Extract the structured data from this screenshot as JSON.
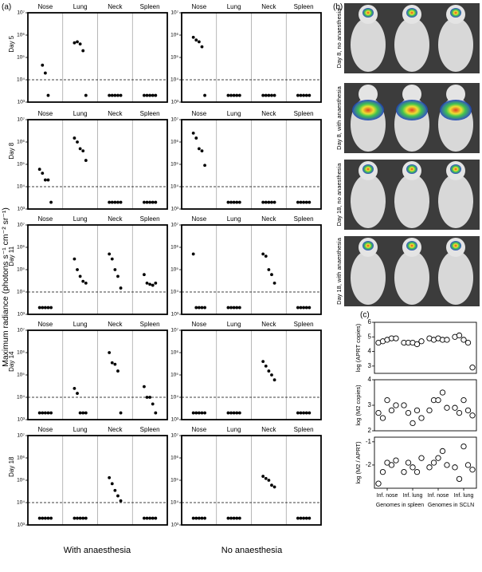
{
  "panel_labels": [
    "(a)",
    "(b)",
    "(c)"
  ],
  "a": {
    "ylabel": "Maximum radiance (photons s⁻¹ cm⁻² sr⁻¹)",
    "columns": [
      "With anaesthesia",
      "No anaesthesia"
    ],
    "rows": [
      "Day 5",
      "Day 8",
      "Day 11",
      "Day 14",
      "Day 18"
    ]
  },
  "b": {
    "labels": [
      "Day 8, no anaesthesia",
      "Day 8, with anaesthesia",
      "Day 18, no anaesthesia",
      "Day 18, with anaesthesia"
    ]
  },
  "c": {
    "categories": [
      "Inf. nose",
      "Inf. lung",
      "Inf. nose",
      "Inf. lung"
    ],
    "groups": [
      "Genomes in spleen",
      "Genomes in SCLN"
    ]
  },
  "chart_data": [
    {
      "type": "strip",
      "yscale": "log",
      "categories": [
        "Nose",
        "Lung",
        "Neck",
        "Spleen"
      ],
      "values": [
        [
          45000,
          20000,
          2000
        ],
        [
          450000,
          500000,
          400000,
          200000,
          2000
        ],
        [
          2000,
          2000,
          2000,
          2000,
          2000
        ],
        [
          2000,
          2000,
          2000,
          2000,
          2000
        ]
      ],
      "ylim": [
        1000,
        10000000
      ],
      "yticks": [
        {
          "value": 1000,
          "label": "10³"
        },
        {
          "value": 10000,
          "label": "10⁴"
        },
        {
          "value": 100000,
          "label": "10⁵"
        },
        {
          "value": 1000000,
          "label": "10⁶"
        },
        {
          "value": 10000000,
          "label": "10⁷"
        }
      ],
      "threshold": 10000,
      "marker": "filled",
      "color": "#000000"
    },
    {
      "type": "strip",
      "yscale": "log",
      "categories": [
        "Nose",
        "Lung",
        "Neck",
        "Spleen"
      ],
      "values": [
        [
          800000,
          600000,
          500000,
          300000,
          2000
        ],
        [
          2000,
          2000,
          2000,
          2000,
          2000
        ],
        [
          2000,
          2000,
          2000,
          2000,
          2000
        ],
        [
          2000,
          2000,
          2000,
          2000,
          2000
        ]
      ],
      "ylim": [
        1000,
        10000000
      ],
      "yticks": [
        {
          "value": 1000,
          "label": "10³"
        },
        {
          "value": 10000,
          "label": "10⁴"
        },
        {
          "value": 100000,
          "label": "10⁵"
        },
        {
          "value": 1000000,
          "label": "10⁶"
        },
        {
          "value": 10000000,
          "label": "10⁷"
        }
      ],
      "threshold": 10000,
      "marker": "filled",
      "color": "#000000"
    },
    {
      "type": "strip",
      "yscale": "log",
      "categories": [
        "Nose",
        "Lung",
        "Neck",
        "Spleen"
      ],
      "values": [
        [
          60000,
          40000,
          20000,
          20000,
          2000
        ],
        [
          1500000,
          1000000,
          500000,
          400000,
          150000
        ],
        [
          2000,
          2000,
          2000,
          2000,
          2000
        ],
        [
          2000,
          2000,
          2000,
          2000,
          2000
        ]
      ],
      "ylim": [
        1000,
        10000000
      ],
      "yticks": [
        {
          "value": 1000,
          "label": "10³"
        },
        {
          "value": 10000,
          "label": "10⁴"
        },
        {
          "value": 100000,
          "label": "10⁵"
        },
        {
          "value": 1000000,
          "label": "10⁶"
        },
        {
          "value": 10000000,
          "label": "10⁷"
        }
      ],
      "threshold": 10000,
      "marker": "filled",
      "color": "#000000"
    },
    {
      "type": "strip",
      "yscale": "log",
      "categories": [
        "Nose",
        "Lung",
        "Neck",
        "Spleen"
      ],
      "values": [
        [
          2500000,
          1500000,
          500000,
          400000,
          90000
        ],
        [
          2000,
          2000,
          2000,
          2000,
          2000
        ],
        [
          2000,
          2000,
          2000,
          2000,
          2000
        ],
        [
          2000,
          2000,
          2000,
          2000,
          2000
        ]
      ],
      "ylim": [
        1000,
        10000000
      ],
      "yticks": [
        {
          "value": 1000,
          "label": "10³"
        },
        {
          "value": 10000,
          "label": "10⁴"
        },
        {
          "value": 100000,
          "label": "10⁵"
        },
        {
          "value": 1000000,
          "label": "10⁶"
        },
        {
          "value": 10000000,
          "label": "10⁷"
        }
      ],
      "threshold": 10000,
      "marker": "filled",
      "color": "#000000"
    },
    {
      "type": "strip",
      "yscale": "log",
      "categories": [
        "Nose",
        "Lung",
        "Neck",
        "Spleen"
      ],
      "values": [
        [
          2000,
          2000,
          2000,
          2000,
          2000
        ],
        [
          300000,
          100000,
          50000,
          30000,
          25000
        ],
        [
          500000,
          300000,
          100000,
          50000,
          15000
        ],
        [
          60000,
          25000,
          22000,
          20000,
          25000
        ]
      ],
      "ylim": [
        1000,
        10000000
      ],
      "yticks": [
        {
          "value": 1000,
          "label": "10³"
        },
        {
          "value": 10000,
          "label": "10⁴"
        },
        {
          "value": 100000,
          "label": "10⁵"
        },
        {
          "value": 1000000,
          "label": "10⁶"
        },
        {
          "value": 10000000,
          "label": "10⁷"
        }
      ],
      "threshold": 10000,
      "marker": "filled",
      "color": "#000000"
    },
    {
      "type": "strip",
      "yscale": "log",
      "categories": [
        "Nose",
        "Lung",
        "Neck",
        "Spleen"
      ],
      "values": [
        [
          500000,
          2000,
          2000,
          2000,
          2000
        ],
        [
          2000,
          2000,
          2000,
          2000,
          2000
        ],
        [
          500000,
          400000,
          100000,
          60000,
          25000
        ],
        [
          2000,
          2000,
          2000,
          2000,
          2000
        ]
      ],
      "ylim": [
        1000,
        10000000
      ],
      "yticks": [
        {
          "value": 1000,
          "label": "10³"
        },
        {
          "value": 10000,
          "label": "10⁴"
        },
        {
          "value": 100000,
          "label": "10⁵"
        },
        {
          "value": 1000000,
          "label": "10⁶"
        },
        {
          "value": 10000000,
          "label": "10⁷"
        }
      ],
      "threshold": 10000,
      "marker": "filled",
      "color": "#000000"
    },
    {
      "type": "strip",
      "yscale": "log",
      "categories": [
        "Nose",
        "Lung",
        "Neck",
        "Spleen"
      ],
      "values": [
        [
          2000,
          2000,
          2000,
          2000,
          2000
        ],
        [
          25000,
          15000,
          2000,
          2000,
          2000
        ],
        [
          1000000,
          350000,
          300000,
          150000,
          2000
        ],
        [
          30000,
          10000,
          10000,
          5000,
          2000
        ]
      ],
      "ylim": [
        1000,
        10000000
      ],
      "yticks": [
        {
          "value": 1000,
          "label": "10³"
        },
        {
          "value": 10000,
          "label": "10⁴"
        },
        {
          "value": 100000,
          "label": "10⁵"
        },
        {
          "value": 1000000,
          "label": "10⁶"
        },
        {
          "value": 10000000,
          "label": "10⁷"
        }
      ],
      "threshold": 10000,
      "marker": "filled",
      "color": "#000000"
    },
    {
      "type": "strip",
      "yscale": "log",
      "categories": [
        "Nose",
        "Lung",
        "Neck",
        "Spleen"
      ],
      "values": [
        [
          2000,
          2000,
          2000,
          2000,
          2000
        ],
        [
          2000,
          2000,
          2000,
          2000,
          2000
        ],
        [
          400000,
          250000,
          150000,
          100000,
          60000
        ],
        [
          2000,
          2000,
          2000,
          2000,
          2000
        ]
      ],
      "ylim": [
        1000,
        10000000
      ],
      "yticks": [
        {
          "value": 1000,
          "label": "10³"
        },
        {
          "value": 10000,
          "label": "10⁴"
        },
        {
          "value": 100000,
          "label": "10⁵"
        },
        {
          "value": 1000000,
          "label": "10⁶"
        },
        {
          "value": 10000000,
          "label": "10⁷"
        }
      ],
      "threshold": 10000,
      "marker": "filled",
      "color": "#000000"
    },
    {
      "type": "strip",
      "yscale": "log",
      "categories": [
        "Nose",
        "Lung",
        "Neck",
        "Spleen"
      ],
      "values": [
        [
          2000,
          2000,
          2000,
          2000,
          2000
        ],
        [
          2000,
          2000,
          2000,
          2000,
          2000
        ],
        [
          130000,
          70000,
          35000,
          20000,
          12000
        ],
        [
          2000,
          2000,
          2000,
          2000,
          2000
        ]
      ],
      "ylim": [
        1000,
        10000000
      ],
      "yticks": [
        {
          "value": 1000,
          "label": "10³"
        },
        {
          "value": 10000,
          "label": "10⁴"
        },
        {
          "value": 100000,
          "label": "10⁵"
        },
        {
          "value": 1000000,
          "label": "10⁶"
        },
        {
          "value": 10000000,
          "label": "10⁷"
        }
      ],
      "threshold": 10000,
      "marker": "filled",
      "color": "#000000"
    },
    {
      "type": "strip",
      "yscale": "log",
      "categories": [
        "Nose",
        "Lung",
        "Neck",
        "Spleen"
      ],
      "values": [
        [
          2000,
          2000,
          2000,
          2000,
          2000
        ],
        [
          2000,
          2000,
          2000,
          2000,
          2000
        ],
        [
          150000,
          120000,
          100000,
          60000,
          50000
        ],
        [
          2000,
          2000,
          2000,
          2000,
          2000
        ]
      ],
      "ylim": [
        1000,
        10000000
      ],
      "yticks": [
        {
          "value": 1000,
          "label": "10³"
        },
        {
          "value": 10000,
          "label": "10⁴"
        },
        {
          "value": 100000,
          "label": "10⁵"
        },
        {
          "value": 1000000,
          "label": "10⁶"
        },
        {
          "value": 10000000,
          "label": "10⁷"
        }
      ],
      "threshold": 10000,
      "marker": "filled",
      "color": "#000000"
    },
    {
      "type": "strip",
      "ylabel": "log (APRT copies)",
      "values": [
        [
          4.6,
          4.7,
          4.8,
          4.9,
          4.9
        ],
        [
          4.6,
          4.6,
          4.6,
          4.5,
          4.7
        ],
        [
          4.9,
          4.8,
          4.9,
          4.8,
          4.8
        ],
        [
          5.0,
          5.1,
          4.8,
          4.6,
          2.9
        ]
      ],
      "ylim": [
        2.5,
        6
      ],
      "yticks": [
        3,
        4,
        5,
        6
      ],
      "marker": "open",
      "color": "#000000"
    },
    {
      "type": "strip",
      "ylabel": "log (M2 copies)",
      "values": [
        [
          2.7,
          2.5,
          3.2,
          2.8,
          3.0
        ],
        [
          3.0,
          2.7,
          2.3,
          2.8,
          2.5
        ],
        [
          2.8,
          3.2,
          3.2,
          3.5,
          2.9
        ],
        [
          2.9,
          2.7,
          3.2,
          2.8,
          2.6
        ]
      ],
      "ylim": [
        2,
        4
      ],
      "yticks": [
        2,
        3,
        4
      ],
      "marker": "open",
      "color": "#000000"
    },
    {
      "type": "strip",
      "ylabel": "log (M2 / APRT)",
      "values": [
        [
          -2.8,
          -2.3,
          -1.9,
          -2.0,
          -1.8
        ],
        [
          -2.3,
          -1.9,
          -2.1,
          -2.3,
          -1.7
        ],
        [
          -2.1,
          -1.9,
          -1.7,
          -1.4,
          -2.0
        ],
        [
          -2.1,
          -2.6,
          -1.2,
          -2.0,
          -2.2
        ]
      ],
      "ylim": [
        -3,
        -0.8
      ],
      "yticks": [
        -1,
        -2
      ],
      "marker": "open",
      "color": "#000000"
    }
  ]
}
